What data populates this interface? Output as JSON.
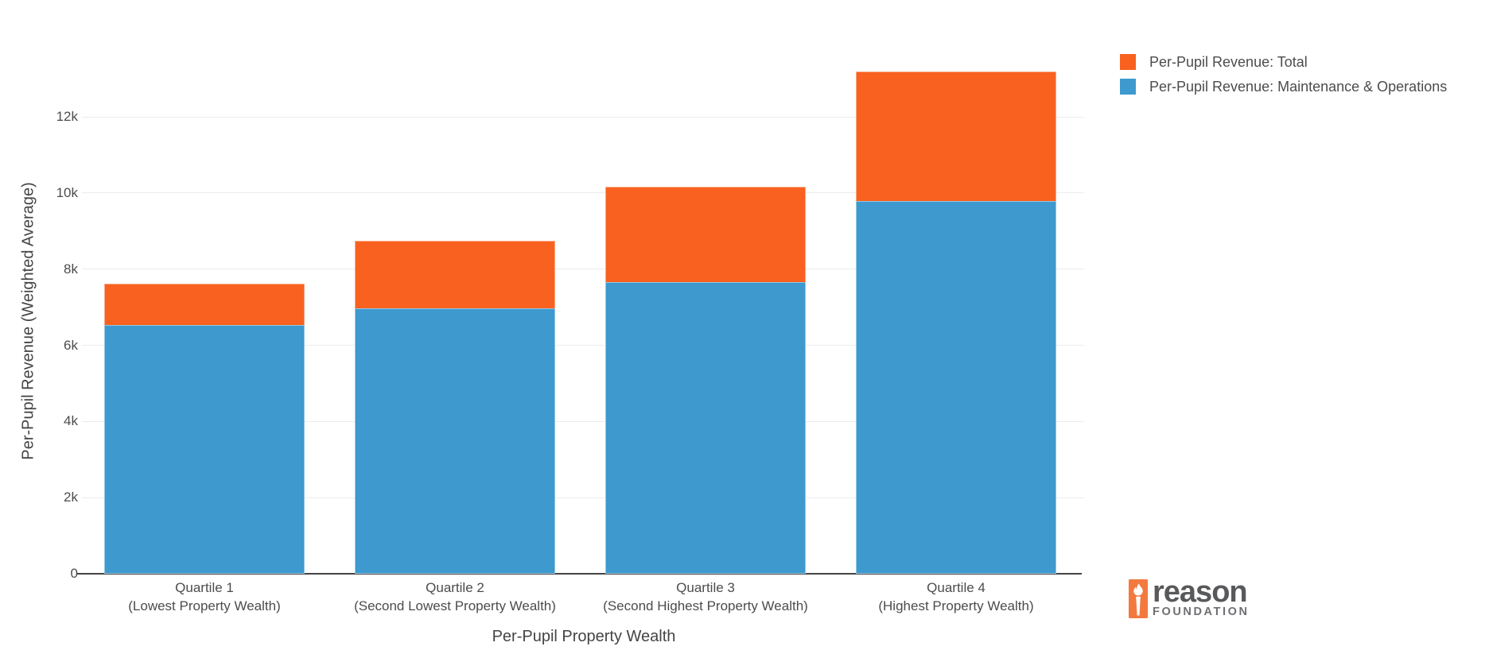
{
  "chart_data": {
    "type": "bar",
    "barmode": "overlay",
    "title": "",
    "xlabel": "Per-Pupil Property Wealth",
    "ylabel": "Per-Pupil Revenue (Weighted Average)",
    "categories": [
      [
        "Quartile 1",
        "(Lowest Property Wealth)"
      ],
      [
        "Quartile 2",
        "(Second Lowest Property Wealth)"
      ],
      [
        "Quartile 3",
        "(Second Highest Property Wealth)"
      ],
      [
        "Quartile 4",
        "(Highest Property Wealth)"
      ]
    ],
    "series": [
      {
        "name": "Per-Pupil Revenue: Total",
        "color": "#f8611f",
        "values": [
          7610,
          8740,
          10160,
          13200
        ]
      },
      {
        "name": "Per-Pupil Revenue: Maintenance & Operations",
        "color": "#3d99ce",
        "values": [
          6540,
          6980,
          7650,
          9780
        ]
      }
    ],
    "ylim": [
      0,
      13878
    ],
    "ytick_values": [
      0,
      2000,
      4000,
      6000,
      8000,
      10000,
      12000
    ],
    "ytick_labels": [
      "0",
      "2k",
      "4k",
      "6k",
      "8k",
      "10k",
      "12k"
    ],
    "grid": true,
    "legend_position": "top-right"
  },
  "branding": {
    "name": "reason",
    "subtext": "FOUNDATION",
    "logo_orange": "#f3793f",
    "logo_text_color": "#58595b"
  },
  "colors": {
    "background": "#ffffff",
    "grid": "#ececec",
    "axis_line": "#444444",
    "tick_text": "#4c4c4c"
  }
}
